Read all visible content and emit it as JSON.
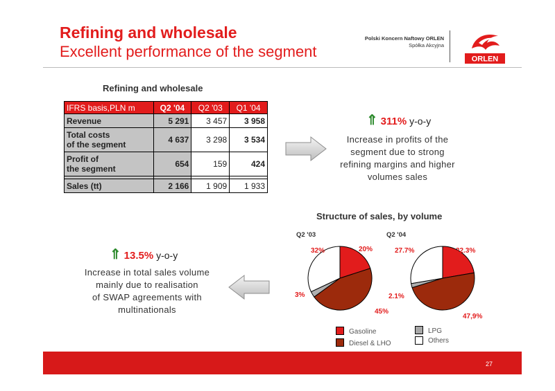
{
  "header": {
    "title": "Refining and wholesale",
    "subtitle": "Excellent performance of the segment",
    "company_line1": "Polski Koncern Naftowy ORLEN",
    "company_line2": "Spółka Akcyjna",
    "logo_text": "ORLEN"
  },
  "table": {
    "title": "Refining and wholesale",
    "header": [
      "IFRS basis,PLN m",
      "Q2 '04",
      "Q2 '03",
      "Q1 '04"
    ],
    "rows": [
      {
        "label": "Revenue",
        "q2_04": "5 291",
        "q2_03": "3 457",
        "q1_04": "3 958"
      },
      {
        "label1": "Total costs",
        "label2": "of the segment",
        "q2_04": "4 637",
        "q2_03": "3 298",
        "q1_04": "3 534"
      },
      {
        "label1": "Profit of",
        "label2": "the segment",
        "q2_04": "654",
        "q2_03": "159",
        "q1_04": "424"
      },
      {
        "label": "Sales (tt)",
        "q2_04": "2 166",
        "q2_03": "1 909",
        "q1_04": "1 933"
      }
    ]
  },
  "profit_note": {
    "arrow": "⇑",
    "value": "311%",
    "suffix": "y-o-y",
    "lines": [
      "Increase in profits of the",
      "segment due to strong",
      "refining margins and higher",
      "volumes sales"
    ]
  },
  "volume_note": {
    "arrow": "⇑",
    "value": "13.5%",
    "suffix": "y-o-y",
    "lines": [
      "Increase in total sales volume",
      "mainly due to realisation",
      "of SWAP agreements with",
      "multinationals"
    ]
  },
  "sales": {
    "title": "Structure of sales, by volume",
    "pies": [
      {
        "period": "Q2 '03",
        "labels": {
          "gasoline": "20%",
          "diesel": "45%",
          "lpg": "3%",
          "others": "32%"
        }
      },
      {
        "period": "Q2 '04",
        "labels": {
          "gasoline": "22.3%",
          "diesel": "47,9%",
          "lpg": "2.1%",
          "others": "27.7%"
        }
      }
    ],
    "legend": {
      "gasoline": "Gasoline",
      "diesel": "Diesel & LHO",
      "lpg": "LPG",
      "others": "Others"
    },
    "colors": {
      "gasoline": "#e21c1c",
      "diesel": "#9c2a0c",
      "lpg": "#b0b0b0",
      "others": "#ffffff"
    }
  },
  "footer": {
    "page": "27"
  }
}
